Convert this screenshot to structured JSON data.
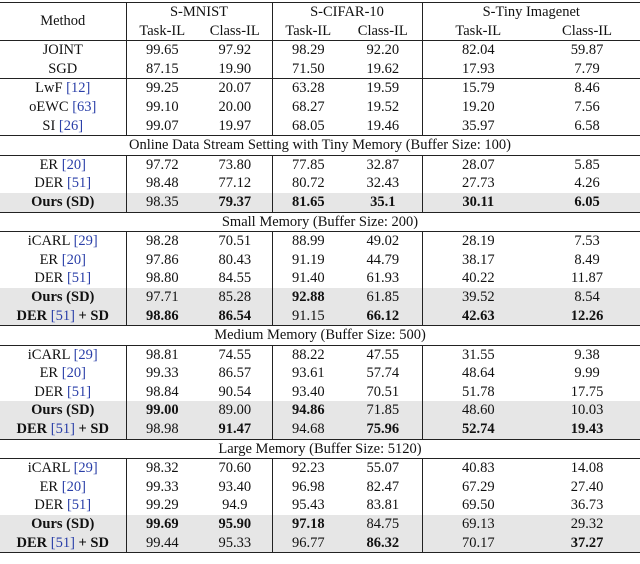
{
  "headers": {
    "method": "Method",
    "groups": [
      "S-MNIST",
      "S-CIFAR-10",
      "S-Tiny Imagenet"
    ],
    "sub": [
      "Task-IL",
      "Class-IL",
      "Task-IL",
      "Class-IL",
      "Task-IL",
      "Class-IL"
    ]
  },
  "sections": [
    {
      "title": "",
      "rows": [
        {
          "name": "JOINT",
          "cite": "",
          "suffix": "",
          "vals": [
            "99.65",
            "97.92",
            "98.29",
            "92.20",
            "82.04",
            "59.87"
          ],
          "bold": [],
          "hl": false
        },
        {
          "name": "SGD",
          "cite": "",
          "suffix": "",
          "vals": [
            "87.15",
            "19.90",
            "71.50",
            "19.62",
            "17.93",
            "7.79"
          ],
          "bold": [],
          "hl": false
        }
      ]
    },
    {
      "title": "",
      "rows": [
        {
          "name": "LwF ",
          "cite": "[12]",
          "suffix": "",
          "vals": [
            "99.25",
            "20.07",
            "63.28",
            "19.59",
            "15.79",
            "8.46"
          ],
          "bold": [],
          "hl": false
        },
        {
          "name": "oEWC ",
          "cite": "[63]",
          "suffix": "",
          "vals": [
            "99.10",
            "20.00",
            "68.27",
            "19.52",
            "19.20",
            "7.56"
          ],
          "bold": [],
          "hl": false
        },
        {
          "name": "SI ",
          "cite": "[26]",
          "suffix": "",
          "vals": [
            "99.07",
            "19.97",
            "68.05",
            "19.46",
            "35.97",
            "6.58"
          ],
          "bold": [],
          "hl": false
        }
      ]
    },
    {
      "title": "Online Data Stream Setting with Tiny Memory (Buffer Size: 100)",
      "rows": [
        {
          "name": "ER ",
          "cite": "[20]",
          "suffix": "",
          "vals": [
            "97.72",
            "73.80",
            "77.85",
            "32.87",
            "28.07",
            "5.85"
          ],
          "bold": [],
          "hl": false
        },
        {
          "name": "DER ",
          "cite": "[51]",
          "suffix": "",
          "vals": [
            "98.48",
            "77.12",
            "80.72",
            "32.43",
            "27.73",
            "4.26"
          ],
          "bold": [],
          "hl": false
        },
        {
          "name": "Ours (SD)",
          "cite": "",
          "suffix": "",
          "vals": [
            "98.35",
            "79.37",
            "81.65",
            "35.1",
            "30.11",
            "6.05"
          ],
          "bold": [
            1,
            2,
            3,
            4,
            5
          ],
          "hl": true,
          "boldname": true
        }
      ]
    },
    {
      "title": "Small Memory (Buffer Size: 200)",
      "rows": [
        {
          "name": "iCARL ",
          "cite": "[29]",
          "suffix": "",
          "vals": [
            "98.28",
            "70.51",
            "88.99",
            "49.02",
            "28.19",
            "7.53"
          ],
          "bold": [],
          "hl": false
        },
        {
          "name": "ER ",
          "cite": "[20]",
          "suffix": "",
          "vals": [
            "97.86",
            "80.43",
            "91.19",
            "44.79",
            "38.17",
            "8.49"
          ],
          "bold": [],
          "hl": false
        },
        {
          "name": "DER ",
          "cite": "[51]",
          "suffix": "",
          "vals": [
            "98.80",
            "84.55",
            "91.40",
            "61.93",
            "40.22",
            "11.87"
          ],
          "bold": [],
          "hl": false
        },
        {
          "name": "Ours (SD)",
          "cite": "",
          "suffix": "",
          "vals": [
            "97.71",
            "85.28",
            "92.88",
            "61.85",
            "39.52",
            "8.54"
          ],
          "bold": [
            2
          ],
          "hl": true,
          "boldname": true
        },
        {
          "name": "DER ",
          "cite": "[51]",
          "suffix": " + SD",
          "vals": [
            "98.86",
            "86.54",
            "91.15",
            "66.12",
            "42.63",
            "12.26"
          ],
          "bold": [
            0,
            1,
            3,
            4,
            5
          ],
          "hl": true,
          "boldname": true
        }
      ]
    },
    {
      "title": "Medium Memory (Buffer Size: 500)",
      "rows": [
        {
          "name": "iCARL ",
          "cite": "[29]",
          "suffix": "",
          "vals": [
            "98.81",
            "74.55",
            "88.22",
            "47.55",
            "31.55",
            "9.38"
          ],
          "bold": [],
          "hl": false
        },
        {
          "name": "ER ",
          "cite": "[20]",
          "suffix": "",
          "vals": [
            "99.33",
            "86.57",
            "93.61",
            "57.74",
            "48.64",
            "9.99"
          ],
          "bold": [],
          "hl": false
        },
        {
          "name": "DER ",
          "cite": "[51]",
          "suffix": "",
          "vals": [
            "98.84",
            "90.54",
            "93.40",
            "70.51",
            "51.78",
            "17.75"
          ],
          "bold": [],
          "hl": false
        },
        {
          "name": "Ours (SD)",
          "cite": "",
          "suffix": "",
          "vals": [
            "99.00",
            "89.00",
            "94.86",
            "71.85",
            "48.60",
            "10.03"
          ],
          "bold": [
            0,
            2
          ],
          "hl": true,
          "boldname": true
        },
        {
          "name": "DER ",
          "cite": "[51]",
          "suffix": " + SD",
          "vals": [
            "98.98",
            "91.47",
            "94.68",
            "75.96",
            "52.74",
            "19.43"
          ],
          "bold": [
            1,
            3,
            4,
            5
          ],
          "hl": true,
          "boldname": true
        }
      ]
    },
    {
      "title": "Large Memory (Buffer Size: 5120)",
      "rows": [
        {
          "name": "iCARL ",
          "cite": "[29]",
          "suffix": "",
          "vals": [
            "98.32",
            "70.60",
            "92.23",
            "55.07",
            "40.83",
            "14.08"
          ],
          "bold": [],
          "hl": false
        },
        {
          "name": "ER ",
          "cite": "[20]",
          "suffix": "",
          "vals": [
            "99.33",
            "93.40",
            "96.98",
            "82.47",
            "67.29",
            "27.40"
          ],
          "bold": [],
          "hl": false
        },
        {
          "name": "DER ",
          "cite": "[51]",
          "suffix": "",
          "vals": [
            "99.29",
            "94.9",
            "95.43",
            "83.81",
            "69.50",
            "36.73"
          ],
          "bold": [],
          "hl": false
        },
        {
          "name": "Ours (SD)",
          "cite": "",
          "suffix": "",
          "vals": [
            "99.69",
            "95.90",
            "97.18",
            "84.75",
            "69.13",
            "29.32"
          ],
          "bold": [
            0,
            1,
            2
          ],
          "hl": true,
          "boldname": true
        },
        {
          "name": "DER ",
          "cite": "[51]",
          "suffix": " + SD",
          "vals": [
            "99.44",
            "95.33",
            "96.77",
            "86.32",
            "70.17",
            "37.27"
          ],
          "bold": [
            3,
            5
          ],
          "hl": true,
          "boldname": true
        }
      ]
    }
  ]
}
